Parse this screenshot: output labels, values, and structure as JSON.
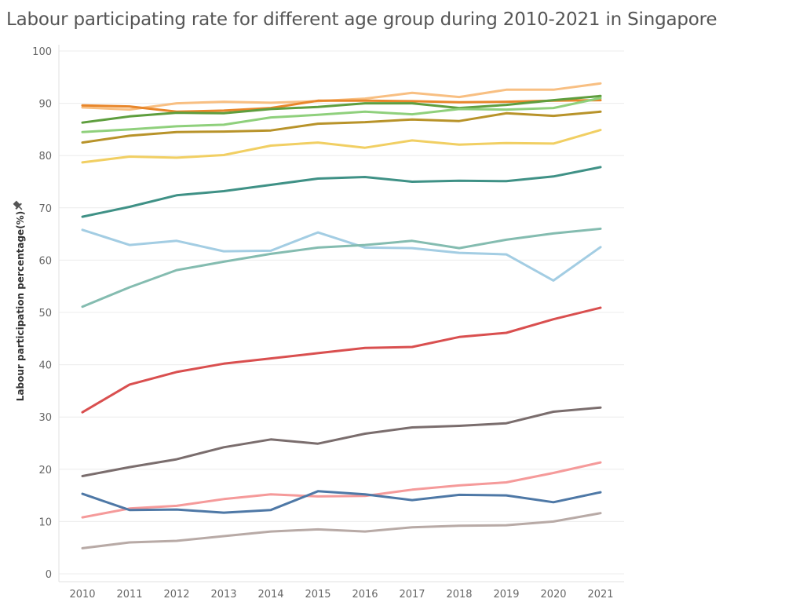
{
  "title": "Labour participating rate for different age group during 2010-2021 in Singapore",
  "chart_data": {
    "type": "line",
    "title": "Labour participating rate for different age group during 2010-2021 in Singapore",
    "xlabel": "",
    "ylabel": "Labour participation percentage(%)",
    "ylim": [
      0,
      100
    ],
    "yticks": [
      0,
      10,
      20,
      30,
      40,
      50,
      60,
      70,
      80,
      90,
      100
    ],
    "x": [
      2010,
      2011,
      2012,
      2013,
      2014,
      2015,
      2016,
      2017,
      2018,
      2019,
      2020,
      2021
    ],
    "grid": "horizontal",
    "legend": "none",
    "series": [
      {
        "color": "#f8bf82",
        "values": [
          89.2,
          88.8,
          90.0,
          90.3,
          90.1,
          90.4,
          90.9,
          92.0,
          91.2,
          92.6,
          92.6,
          93.8
        ]
      },
      {
        "color": "#e8862a",
        "values": [
          89.6,
          89.4,
          88.4,
          88.6,
          89.1,
          90.5,
          90.5,
          90.4,
          90.2,
          90.3,
          90.5,
          90.6
        ]
      },
      {
        "color": "#5e9e3e",
        "values": [
          86.3,
          87.5,
          88.2,
          88.1,
          88.9,
          89.3,
          90.0,
          90.0,
          89.1,
          89.7,
          90.6,
          91.4
        ]
      },
      {
        "color": "#8fd07c",
        "values": [
          84.5,
          85.0,
          85.6,
          85.9,
          87.3,
          87.8,
          88.4,
          87.9,
          88.9,
          88.8,
          89.1,
          91.0
        ]
      },
      {
        "color": "#b8932a",
        "values": [
          82.5,
          83.8,
          84.5,
          84.6,
          84.8,
          86.1,
          86.4,
          86.9,
          86.6,
          88.1,
          87.6,
          88.4
        ]
      },
      {
        "color": "#f1cf63",
        "values": [
          78.7,
          79.8,
          79.6,
          80.1,
          81.9,
          82.5,
          81.5,
          82.9,
          82.1,
          82.4,
          82.3,
          84.9
        ]
      },
      {
        "color": "#3f9186",
        "values": [
          68.3,
          70.2,
          72.4,
          73.2,
          74.4,
          75.6,
          75.9,
          75.0,
          75.2,
          75.1,
          76.0,
          77.8
        ]
      },
      {
        "color": "#a3cde3",
        "values": [
          65.8,
          62.9,
          63.7,
          61.7,
          61.8,
          65.3,
          62.4,
          62.3,
          61.4,
          61.1,
          56.1,
          62.5
        ]
      },
      {
        "color": "#84bcb0",
        "values": [
          51.1,
          54.8,
          58.1,
          59.7,
          61.2,
          62.4,
          62.9,
          63.7,
          62.3,
          63.9,
          65.1,
          66.0
        ]
      },
      {
        "color": "#d94f4f",
        "values": [
          30.9,
          36.2,
          38.6,
          40.2,
          41.2,
          42.2,
          43.2,
          43.4,
          45.3,
          46.1,
          48.7,
          50.9
        ]
      },
      {
        "color": "#7a6d6d",
        "values": [
          18.7,
          20.4,
          21.9,
          24.2,
          25.7,
          24.9,
          26.8,
          28.0,
          28.3,
          28.8,
          31.0,
          31.8
        ]
      },
      {
        "color": "#f59a9a",
        "values": [
          10.8,
          12.5,
          13.0,
          14.3,
          15.2,
          14.8,
          14.9,
          16.1,
          16.9,
          17.5,
          19.3,
          21.3
        ]
      },
      {
        "color": "#4e78a6",
        "values": [
          15.3,
          12.2,
          12.3,
          11.7,
          12.2,
          15.8,
          15.2,
          14.1,
          15.1,
          15.0,
          13.7,
          15.6
        ]
      },
      {
        "color": "#b8aaa6",
        "values": [
          4.9,
          6.0,
          6.3,
          7.2,
          8.1,
          8.5,
          8.1,
          8.9,
          9.2,
          9.3,
          10.0,
          11.6
        ]
      }
    ]
  }
}
